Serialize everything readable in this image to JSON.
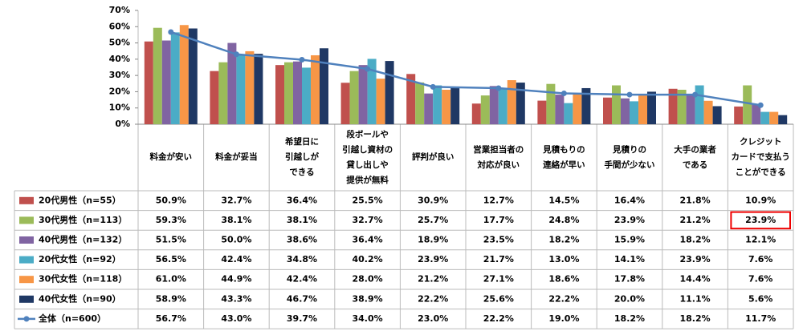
{
  "chart_data": {
    "type": "bar",
    "categories": [
      "料金が安い",
      "料金が妥当",
      "希望日に\n引越しが\nできる",
      "段ボールや\n引越し資材の\n貸し出しや\n提供が無料",
      "評判が良い",
      "営業担当者の\n対応が良い",
      "見積もりの\n連絡が早い",
      "見積りの\n手間が少ない",
      "大手の業者\nである",
      "クレジット\nカードで支払う\nことができる"
    ],
    "series": [
      {
        "name": "20代男性（n=55）",
        "color": "#c0504d",
        "values": [
          50.9,
          32.7,
          36.4,
          25.5,
          30.9,
          12.7,
          14.5,
          16.4,
          21.8,
          10.9
        ],
        "value_labels": [
          "50.9%",
          "32.7%",
          "36.4%",
          "25.5%",
          "30.9%",
          "12.7%",
          "14.5%",
          "16.4%",
          "21.8%",
          "10.9%"
        ]
      },
      {
        "name": "30代男性（n=113）",
        "color": "#9bbb59",
        "values": [
          59.3,
          38.1,
          38.1,
          32.7,
          25.7,
          17.7,
          24.8,
          23.9,
          21.2,
          23.9
        ],
        "value_labels": [
          "59.3%",
          "38.1%",
          "38.1%",
          "32.7%",
          "25.7%",
          "17.7%",
          "24.8%",
          "23.9%",
          "21.2%",
          "23.9%"
        ]
      },
      {
        "name": "40代男性（n=132）",
        "color": "#8064a2",
        "values": [
          51.5,
          50.0,
          38.6,
          36.4,
          18.9,
          23.5,
          18.2,
          15.9,
          18.2,
          12.1
        ],
        "value_labels": [
          "51.5%",
          "50.0%",
          "38.6%",
          "36.4%",
          "18.9%",
          "23.5%",
          "18.2%",
          "15.9%",
          "18.2%",
          "12.1%"
        ]
      },
      {
        "name": "20代女性（n=92）",
        "color": "#4bacc6",
        "values": [
          56.5,
          42.4,
          34.8,
          40.2,
          23.9,
          21.7,
          13.0,
          14.1,
          23.9,
          7.6
        ],
        "value_labels": [
          "56.5%",
          "42.4%",
          "34.8%",
          "40.2%",
          "23.9%",
          "21.7%",
          "13.0%",
          "14.1%",
          "23.9%",
          "7.6%"
        ]
      },
      {
        "name": "30代女性（n=118）",
        "color": "#f79646",
        "values": [
          61.0,
          44.9,
          42.4,
          28.0,
          21.2,
          27.1,
          18.6,
          17.8,
          14.4,
          7.6
        ],
        "value_labels": [
          "61.0%",
          "44.9%",
          "42.4%",
          "28.0%",
          "21.2%",
          "27.1%",
          "18.6%",
          "17.8%",
          "14.4%",
          "7.6%"
        ]
      },
      {
        "name": "40代女性（n=90）",
        "color": "#1f3864",
        "values": [
          58.9,
          43.3,
          46.7,
          38.9,
          22.2,
          25.6,
          22.2,
          20.0,
          11.1,
          5.6
        ],
        "value_labels": [
          "58.9%",
          "43.3%",
          "46.7%",
          "38.9%",
          "22.2%",
          "25.6%",
          "22.2%",
          "20.0%",
          "11.1%",
          "5.6%"
        ]
      },
      {
        "name": "全体（n=600）",
        "type": "line",
        "color": "#4f81bd",
        "values": [
          56.7,
          43.0,
          39.7,
          34.0,
          23.0,
          22.2,
          19.0,
          18.2,
          18.2,
          11.7
        ],
        "value_labels": [
          "56.7%",
          "43.0%",
          "39.7%",
          "34.0%",
          "23.0%",
          "22.2%",
          "19.0%",
          "18.2%",
          "18.2%",
          "11.7%"
        ]
      }
    ],
    "ylim": [
      0,
      70
    ],
    "yticks": [
      {
        "value": 0,
        "label": "0%"
      },
      {
        "value": 10,
        "label": "10%"
      },
      {
        "value": 20,
        "label": "20%"
      },
      {
        "value": 30,
        "label": "30%"
      },
      {
        "value": 40,
        "label": "40%"
      },
      {
        "value": 50,
        "label": "50%"
      },
      {
        "value": 60,
        "label": "60%"
      },
      {
        "value": 70,
        "label": "70%"
      }
    ],
    "grid": false
  }
}
